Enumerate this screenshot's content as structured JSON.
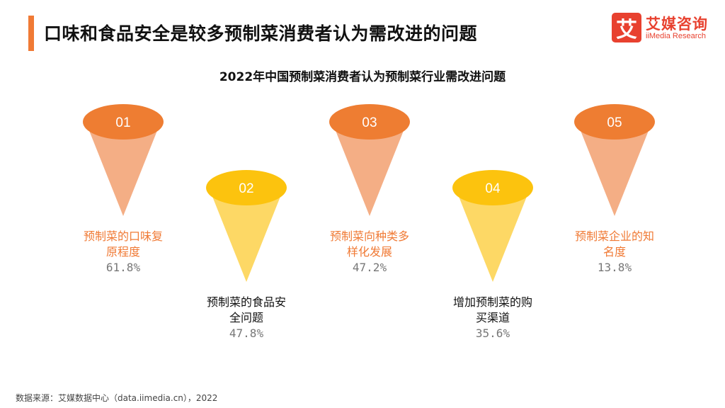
{
  "header": {
    "title": "口味和食品安全是较多预制菜消费者认为需改进的问题"
  },
  "logo": {
    "mark": "艾",
    "name_cn": "艾媒咨询",
    "name_en": "iiMedia Research",
    "color": "#e8412f"
  },
  "chart_data": {
    "type": "bar",
    "title": "2022年中国预制菜消费者认为预制菜行业需改进问题",
    "unit": "%",
    "items": [
      {
        "index": "01",
        "label": "预制菜的口味复原程度",
        "label_lines": [
          "预制菜的口味复",
          "原程度"
        ],
        "value": 61.8,
        "value_text": "61.8%"
      },
      {
        "index": "02",
        "label": "预制菜的食品安全问题",
        "label_lines": [
          "预制菜的食品安",
          "全问题"
        ],
        "value": 47.8,
        "value_text": "47.8%"
      },
      {
        "index": "03",
        "label": "预制菜向种类多样化发展",
        "label_lines": [
          "预制菜向种类多",
          "样化发展"
        ],
        "value": 47.2,
        "value_text": "47.2%"
      },
      {
        "index": "04",
        "label": "增加预制菜的购买渠道",
        "label_lines": [
          "增加预制菜的购",
          "买渠道"
        ],
        "value": 35.6,
        "value_text": "35.6%"
      },
      {
        "index": "05",
        "label": "预制菜企业的知名度",
        "label_lines": [
          "预制菜企业的知",
          "名度"
        ],
        "value": 13.8,
        "value_text": "13.8%"
      }
    ]
  },
  "colors": {
    "accent": "#f07a35",
    "orange_top": "#ee7d32",
    "orange_body": "#f4ae85",
    "yellow_top": "#fcc30e",
    "yellow_body": "#fdd865",
    "orange_label": "#f07a35",
    "dark_label": "#111111"
  },
  "source": "数据来源：艾媒数据中心（data.iimedia.cn），2022"
}
